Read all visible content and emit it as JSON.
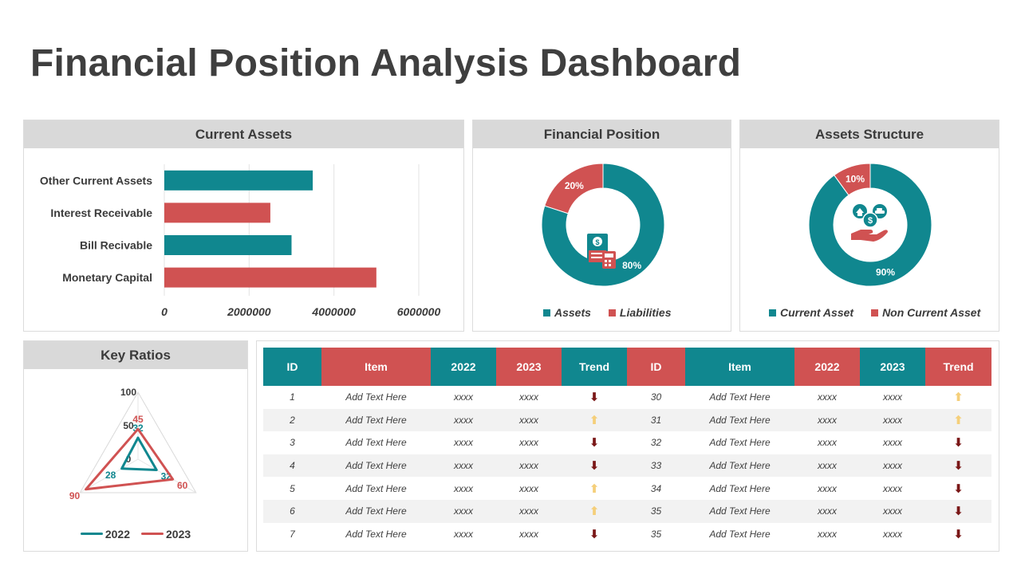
{
  "page": {
    "title": "Financial Position Analysis Dashboard"
  },
  "colors": {
    "teal": "#10878f",
    "red": "#d05252",
    "up": "#f5cf7a",
    "down": "#7a1717"
  },
  "current_assets": {
    "title": "Current Assets",
    "chart_data": {
      "type": "bar",
      "orientation": "horizontal",
      "categories": [
        "Other Current Assets",
        "Interest Receivable",
        "Bill Recivable",
        "Monetary Capital"
      ],
      "values": [
        3500000,
        2500000,
        3000000,
        5000000
      ],
      "colors": [
        "#10878f",
        "#d05252",
        "#10878f",
        "#d05252"
      ],
      "xlim": [
        0,
        6000000
      ],
      "xticks": [
        "0",
        "2000000",
        "4000000",
        "6000000"
      ],
      "grid": true
    }
  },
  "financial_position": {
    "title": "Financial Position",
    "icon": "invoice-calculator-icon",
    "chart_data": {
      "type": "pie",
      "donut": true,
      "slices": [
        {
          "name": "Assets",
          "value": 80,
          "label": "80%",
          "color": "#10878f"
        },
        {
          "name": "Liabilities",
          "value": 20,
          "label": "20%",
          "color": "#d05252"
        }
      ],
      "legend_position": "bottom"
    }
  },
  "assets_structure": {
    "title": "Assets Structure",
    "icon": "hand-money-icon",
    "chart_data": {
      "type": "pie",
      "donut": true,
      "slices": [
        {
          "name": "Current Asset",
          "value": 90,
          "label": "90%",
          "color": "#10878f"
        },
        {
          "name": "Non Current Asset",
          "value": 10,
          "label": "10%",
          "color": "#d05252"
        }
      ],
      "legend_position": "bottom"
    }
  },
  "key_ratios": {
    "title": "Key Ratios",
    "chart_data": {
      "type": "radar",
      "scale_labels": [
        "100",
        "50",
        "0"
      ],
      "max": 100,
      "series": [
        {
          "name": "2022",
          "values": [
            32,
            32,
            28
          ],
          "labels": [
            "32",
            "32",
            "28"
          ],
          "color": "#10878f"
        },
        {
          "name": "2023",
          "values": [
            45,
            60,
            90
          ],
          "labels": [
            "45",
            "60",
            "90"
          ],
          "color": "#d05252"
        }
      ],
      "legend_position": "bottom"
    }
  },
  "table": {
    "headers": [
      "ID",
      "Item",
      "2022",
      "2023",
      "Trend",
      "ID",
      "Item",
      "2022",
      "2023",
      "Trend"
    ],
    "header_colors": [
      "#10878f",
      "#d05252",
      "#10878f",
      "#d05252",
      "#10878f",
      "#d05252",
      "#10878f",
      "#d05252",
      "#10878f",
      "#d05252"
    ],
    "rows": [
      {
        "left": {
          "id": "1",
          "item": "Add Text Here",
          "y2022": "xxxx",
          "y2023": "xxxx",
          "trend": "down"
        },
        "right": {
          "id": "30",
          "item": "Add Text Here",
          "y2022": "xxxx",
          "y2023": "xxxx",
          "trend": "up"
        }
      },
      {
        "left": {
          "id": "2",
          "item": "Add Text Here",
          "y2022": "xxxx",
          "y2023": "xxxx",
          "trend": "up"
        },
        "right": {
          "id": "31",
          "item": "Add Text Here",
          "y2022": "xxxx",
          "y2023": "xxxx",
          "trend": "up"
        }
      },
      {
        "left": {
          "id": "3",
          "item": "Add Text Here",
          "y2022": "xxxx",
          "y2023": "xxxx",
          "trend": "down"
        },
        "right": {
          "id": "32",
          "item": "Add Text Here",
          "y2022": "xxxx",
          "y2023": "xxxx",
          "trend": "down"
        }
      },
      {
        "left": {
          "id": "4",
          "item": "Add Text Here",
          "y2022": "xxxx",
          "y2023": "xxxx",
          "trend": "down"
        },
        "right": {
          "id": "33",
          "item": "Add Text Here",
          "y2022": "xxxx",
          "y2023": "xxxx",
          "trend": "down"
        }
      },
      {
        "left": {
          "id": "5",
          "item": "Add Text Here",
          "y2022": "xxxx",
          "y2023": "xxxx",
          "trend": "up"
        },
        "right": {
          "id": "34",
          "item": "Add Text Here",
          "y2022": "xxxx",
          "y2023": "xxxx",
          "trend": "down"
        }
      },
      {
        "left": {
          "id": "6",
          "item": "Add Text Here",
          "y2022": "xxxx",
          "y2023": "xxxx",
          "trend": "up"
        },
        "right": {
          "id": "35",
          "item": "Add Text Here",
          "y2022": "xxxx",
          "y2023": "xxxx",
          "trend": "down"
        }
      },
      {
        "left": {
          "id": "7",
          "item": "Add Text Here",
          "y2022": "xxxx",
          "y2023": "xxxx",
          "trend": "down"
        },
        "right": {
          "id": "35",
          "item": "Add Text Here",
          "y2022": "xxxx",
          "y2023": "xxxx",
          "trend": "down"
        }
      }
    ]
  }
}
